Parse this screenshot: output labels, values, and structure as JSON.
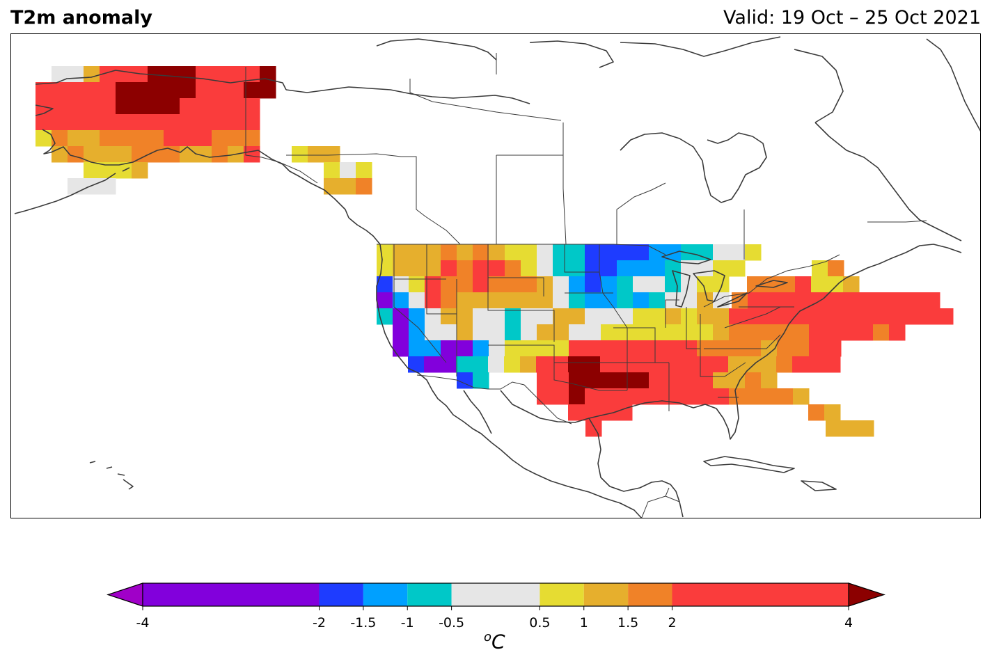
{
  "title": "T2m anomaly",
  "valid_label": "Valid: 19 Oct – 25 Oct 2021",
  "unit": {
    "superscript": "o",
    "symbol": "C"
  },
  "colorbar": {
    "levels": [
      -4,
      -2,
      -1.5,
      -1,
      -0.5,
      0.5,
      1,
      1.5,
      2,
      4
    ],
    "tick_labels": [
      "-4",
      "-2",
      "-1.5",
      "-1",
      "-0.5",
      "0.5",
      "1",
      "1.5",
      "2",
      "4"
    ],
    "colors": [
      "#8200dc",
      "#1e3cff",
      "#00a0ff",
      "#00c8c8",
      "#e6e6e6",
      "#e6dc32",
      "#e6af2d",
      "#f08228",
      "#fa3c3c"
    ],
    "under_color": "#a000c8",
    "over_color": "#8c0000",
    "extend": "both"
  },
  "map": {
    "projection": "Mercator-like, North America",
    "features": [
      "coastlines",
      "country borders",
      "US state borders",
      "Canadian province borders"
    ],
    "colors": {
      "vp": "#8200dc",
      "bl": "#1e3cff",
      "lb": "#00a0ff",
      "cy": "#00c8c8",
      "gr": "#e6e6e6",
      "ye": "#e6dc32",
      "go": "#e6af2d",
      "or": "#f08228",
      "rd": "#fa3c3c",
      "dr": "#8c0000"
    }
  }
}
